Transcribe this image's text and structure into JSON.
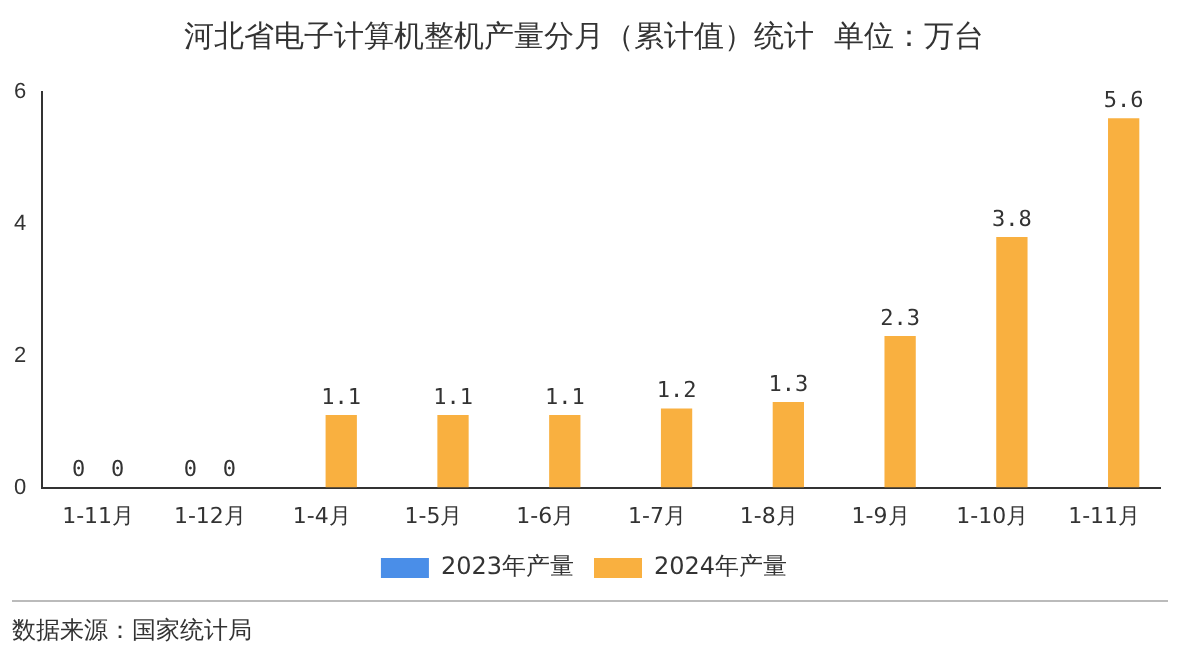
{
  "chart_data": {
    "type": "bar",
    "title": "河北省电子计算机整机产量分月（累计值）统计  单位：万台",
    "categories": [
      "1-11月",
      "1-12月",
      "1-4月",
      "1-5月",
      "1-6月",
      "1-7月",
      "1-8月",
      "1-9月",
      "1-10月",
      "1-11月"
    ],
    "series": [
      {
        "name": "2023年产量",
        "color": "#4a8ee8",
        "values": [
          0,
          0,
          null,
          null,
          null,
          null,
          null,
          null,
          null,
          null
        ]
      },
      {
        "name": "2024年产量",
        "color": "#f9b040",
        "values": [
          0,
          0,
          1.1,
          1.1,
          1.1,
          1.2,
          1.3,
          2.3,
          3.8,
          5.6
        ]
      }
    ],
    "ylim": [
      0,
      6
    ],
    "yticks": [
      0,
      2,
      4,
      6
    ],
    "grid": false,
    "legend": "bottom",
    "data_labels": true,
    "annotations": [
      "数据来源：国家统计局"
    ]
  }
}
